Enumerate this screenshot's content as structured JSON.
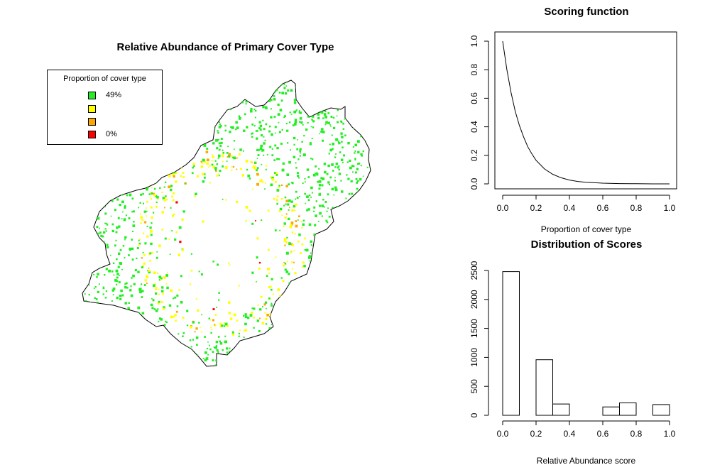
{
  "chart_data": [
    {
      "type": "map",
      "title": "Relative Abundance of Primary Cover Type",
      "legend": {
        "title": "Proportion of cover type",
        "placement": "top-left",
        "entries": [
          {
            "label": "49%",
            "color": "#22ee22"
          },
          {
            "label": "",
            "color": "#ffff00"
          },
          {
            "label": "",
            "color": "#ffa500"
          },
          {
            "label": "0%",
            "color": "#ff0000"
          }
        ]
      },
      "colors": {
        "high": "#22ee22",
        "mid_high": "#ffff00",
        "mid_low": "#ffa500",
        "low": "#ff0000",
        "outline": "#000000"
      }
    },
    {
      "type": "line",
      "title": "Scoring function",
      "xlabel": "Proportion of cover type",
      "ylabel": "",
      "xlim": [
        0,
        1
      ],
      "ylim": [
        0,
        1
      ],
      "x_ticks": [
        "0.0",
        "0.2",
        "0.4",
        "0.6",
        "0.8",
        "1.0"
      ],
      "y_ticks": [
        "0.0",
        "0.2",
        "0.4",
        "0.6",
        "0.8",
        "1.0"
      ],
      "series": [
        {
          "x": [
            0.0,
            0.025,
            0.05,
            0.075,
            0.1,
            0.125,
            0.15,
            0.175,
            0.2,
            0.25,
            0.3,
            0.35,
            0.4,
            0.45,
            0.5,
            0.6,
            0.7,
            0.8,
            0.9,
            1.0
          ],
          "y": [
            1.0,
            0.8,
            0.64,
            0.51,
            0.41,
            0.33,
            0.26,
            0.21,
            0.165,
            0.105,
            0.067,
            0.043,
            0.027,
            0.017,
            0.011,
            0.005,
            0.002,
            0.001,
            0.0,
            0.0
          ]
        }
      ]
    },
    {
      "type": "bar",
      "title": "Distribution of Scores",
      "xlabel": "Relative Abundance score",
      "ylabel": "",
      "xlim": [
        0,
        1
      ],
      "ylim": [
        0,
        2500
      ],
      "x_ticks": [
        "0.0",
        "0.2",
        "0.4",
        "0.6",
        "0.8",
        "1.0"
      ],
      "y_ticks": [
        "0",
        "500",
        "1000",
        "1500",
        "2000",
        "2500"
      ],
      "bins": [
        [
          0.0,
          0.1
        ],
        [
          0.1,
          0.2
        ],
        [
          0.2,
          0.3
        ],
        [
          0.3,
          0.4
        ],
        [
          0.4,
          0.5
        ],
        [
          0.5,
          0.6
        ],
        [
          0.6,
          0.7
        ],
        [
          0.7,
          0.8
        ],
        [
          0.8,
          0.9
        ],
        [
          0.9,
          1.0
        ]
      ],
      "values": [
        2480,
        0,
        960,
        195,
        0,
        0,
        145,
        215,
        0,
        185
      ]
    }
  ]
}
